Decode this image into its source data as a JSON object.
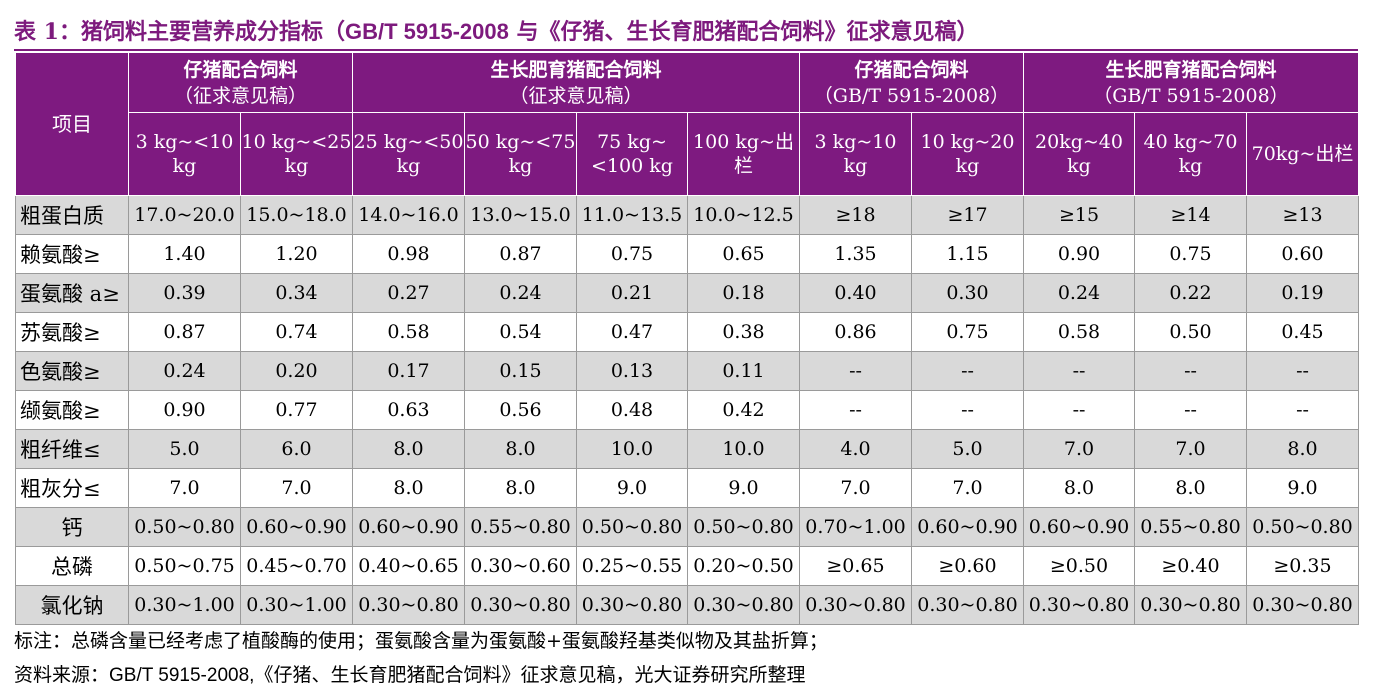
{
  "title": {
    "prefix": "表 1：猪饲料主要营养成分指标（",
    "std": "GB/T 5915-2008",
    "suffix": " 与《仔猪、生长育肥猪配合饲料》征求意见稿）"
  },
  "header": {
    "item_label": "项目",
    "groups": [
      {
        "line1": "仔猪配合饲料",
        "line2": "（征求意见稿）"
      },
      {
        "line1": "生长肥育猪配合饲料",
        "line2": "（征求意见稿）"
      },
      {
        "line1": "仔猪配合饲料",
        "line2": "（GB/T 5915-2008）"
      },
      {
        "line1": "生长肥育猪配合饲料",
        "line2": "（GB/T 5915-2008）"
      }
    ],
    "columns": [
      "3 kg~<10 kg",
      "10 kg~<25 kg",
      "25 kg~<50 kg",
      "50 kg~<75 kg",
      "75 kg~<100 kg",
      "100 kg~出栏",
      "3 kg~10 kg",
      "10 kg~20 kg",
      "20kg~40 kg",
      "40 kg~70 kg",
      "70kg~出栏"
    ]
  },
  "rows": [
    {
      "label": "粗蛋白质",
      "values": [
        "17.0~20.0",
        "15.0~18.0",
        "14.0~16.0",
        "13.0~15.0",
        "11.0~13.5",
        "10.0~12.5",
        "≥18",
        "≥17",
        "≥15",
        "≥14",
        "≥13"
      ]
    },
    {
      "label": "赖氨酸≥",
      "values": [
        "1.40",
        "1.20",
        "0.98",
        "0.87",
        "0.75",
        "0.65",
        "1.35",
        "1.15",
        "0.90",
        "0.75",
        "0.60"
      ]
    },
    {
      "label": "蛋氨酸 a≥",
      "values": [
        "0.39",
        "0.34",
        "0.27",
        "0.24",
        "0.21",
        "0.18",
        "0.40",
        "0.30",
        "0.24",
        "0.22",
        "0.19"
      ]
    },
    {
      "label": "苏氨酸≥",
      "values": [
        "0.87",
        "0.74",
        "0.58",
        "0.54",
        "0.47",
        "0.38",
        "0.86",
        "0.75",
        "0.58",
        "0.50",
        "0.45"
      ]
    },
    {
      "label": "色氨酸≥",
      "values": [
        "0.24",
        "0.20",
        "0.17",
        "0.15",
        "0.13",
        "0.11",
        "--",
        "--",
        "--",
        "--",
        "--"
      ]
    },
    {
      "label": "缬氨酸≥",
      "values": [
        "0.90",
        "0.77",
        "0.63",
        "0.56",
        "0.48",
        "0.42",
        "--",
        "--",
        "--",
        "--",
        "--"
      ]
    },
    {
      "label": "粗纤维≤",
      "values": [
        "5.0",
        "6.0",
        "8.0",
        "8.0",
        "10.0",
        "10.0",
        "4.0",
        "5.0",
        "7.0",
        "7.0",
        "8.0"
      ]
    },
    {
      "label": "粗灰分≤",
      "values": [
        "7.0",
        "7.0",
        "8.0",
        "8.0",
        "9.0",
        "9.0",
        "7.0",
        "7.0",
        "8.0",
        "8.0",
        "9.0"
      ]
    },
    {
      "label": "钙",
      "values": [
        "0.50~0.80",
        "0.60~0.90",
        "0.60~0.90",
        "0.55~0.80",
        "0.50~0.80",
        "0.50~0.80",
        "0.70~1.00",
        "0.60~0.90",
        "0.60~0.90",
        "0.55~0.80",
        "0.50~0.80"
      ]
    },
    {
      "label": "总磷",
      "values": [
        "0.50~0.75",
        "0.45~0.70",
        "0.40~0.65",
        "0.30~0.60",
        "0.25~0.55",
        "0.20~0.50",
        "≥0.65",
        "≥0.60",
        "≥0.50",
        "≥0.40",
        "≥0.35"
      ]
    },
    {
      "label": "氯化钠",
      "values": [
        "0.30~1.00",
        "0.30~1.00",
        "0.30~0.80",
        "0.30~0.80",
        "0.30~0.80",
        "0.30~0.80",
        "0.30~0.80",
        "0.30~0.80",
        "0.30~0.80",
        "0.30~0.80",
        "0.30~0.80"
      ]
    }
  ],
  "notes": {
    "remark": "标注：总磷含量已经考虑了植酸酶的使用；蛋氨酸含量为蛋氨酸+蛋氨酸羟基类似物及其盐折算；",
    "source_prefix": "资料来源：",
    "source_std": "GB/T 5915-2008,",
    "source_suffix": "《仔猪、生长育肥猪配合饲料》征求意见稿，光大证券研究所整理"
  },
  "colors": {
    "header_bg": "#7e1a80",
    "title": "#7d1a7d",
    "shaded_row": "#d9d9d9"
  }
}
